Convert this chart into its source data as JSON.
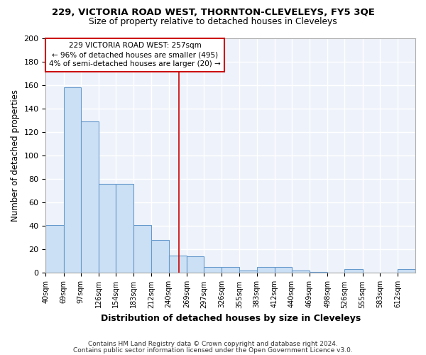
{
  "title": "229, VICTORIA ROAD WEST, THORNTON-CLEVELEYS, FY5 3QE",
  "subtitle": "Size of property relative to detached houses in Cleveleys",
  "xlabel": "Distribution of detached houses by size in Cleveleys",
  "ylabel": "Number of detached properties",
  "bar_color": "#cce0f5",
  "bar_edge_color": "#6699cc",
  "background_color": "#eef3fb",
  "grid_color": "#ffffff",
  "vline_color": "#cc0000",
  "vline_x": 257,
  "annotation_line1": "229 VICTORIA ROAD WEST: 257sqm",
  "annotation_line2": "← 96% of detached houses are smaller (495)",
  "annotation_line3": "4% of semi-detached houses are larger (20) →",
  "footer_line1": "Contains HM Land Registry data © Crown copyright and database right 2024.",
  "footer_line2": "Contains public sector information licensed under the Open Government Licence v3.0.",
  "bin_labels": [
    "40sqm",
    "69sqm",
    "97sqm",
    "126sqm",
    "154sqm",
    "183sqm",
    "212sqm",
    "240sqm",
    "269sqm",
    "297sqm",
    "326sqm",
    "355sqm",
    "383sqm",
    "412sqm",
    "440sqm",
    "469sqm",
    "498sqm",
    "526sqm",
    "555sqm",
    "583sqm",
    "612sqm"
  ],
  "bin_edges": [
    40,
    69,
    97,
    126,
    154,
    183,
    212,
    240,
    269,
    297,
    326,
    355,
    383,
    412,
    440,
    469,
    498,
    526,
    555,
    583,
    612,
    641
  ],
  "values": [
    41,
    158,
    129,
    76,
    76,
    41,
    28,
    15,
    14,
    5,
    5,
    2,
    5,
    5,
    2,
    1,
    0,
    3,
    0,
    0,
    3
  ],
  "ylim": [
    0,
    200
  ],
  "yticks": [
    0,
    20,
    40,
    60,
    80,
    100,
    120,
    140,
    160,
    180,
    200
  ]
}
